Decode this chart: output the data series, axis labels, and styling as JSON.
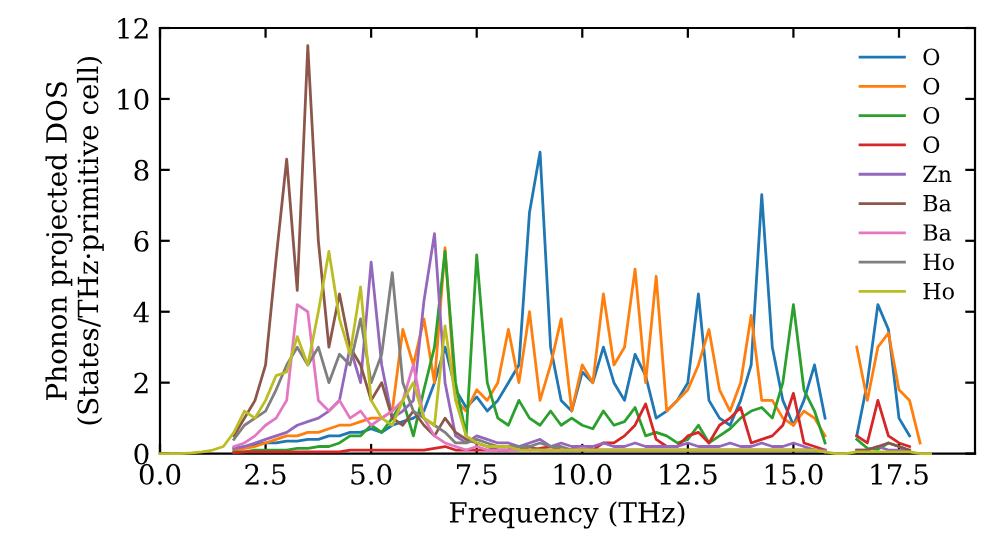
{
  "chart_data": {
    "type": "line",
    "xlabel": "Frequency (THz)",
    "ylabel": "Phonon projected DOS\n(States/THz·primitive cell)",
    "xlim": [
      0,
      19.3
    ],
    "ylim": [
      0,
      12
    ],
    "xticks": [
      {
        "value": 0,
        "label": "0.0"
      },
      {
        "value": 2.5,
        "label": "2.5"
      },
      {
        "value": 5,
        "label": "5.0"
      },
      {
        "value": 7.5,
        "label": "7.5"
      },
      {
        "value": 10,
        "label": "10.0"
      },
      {
        "value": 12.5,
        "label": "12.5"
      },
      {
        "value": 15,
        "label": "15.0"
      },
      {
        "value": 17.5,
        "label": "17.5"
      }
    ],
    "yticks": [
      0,
      2,
      4,
      6,
      8,
      10,
      12
    ],
    "legend": "top right",
    "grid": false,
    "marker": "none",
    "line_style": "solid",
    "x": [
      0,
      0.25,
      0.5,
      0.75,
      1,
      1.25,
      1.5,
      1.75,
      2,
      2.25,
      2.5,
      2.75,
      3,
      3.25,
      3.5,
      3.75,
      4,
      4.25,
      4.5,
      4.75,
      5,
      5.25,
      5.5,
      5.75,
      6,
      6.25,
      6.5,
      6.75,
      7,
      7.25,
      7.5,
      7.75,
      8,
      8.25,
      8.5,
      8.75,
      9,
      9.25,
      9.5,
      9.75,
      10,
      10.25,
      10.5,
      10.75,
      11,
      11.25,
      11.5,
      11.75,
      12,
      12.25,
      12.5,
      12.75,
      13,
      13.25,
      13.5,
      13.75,
      14,
      14.25,
      14.5,
      14.75,
      15,
      15.25,
      15.5,
      15.75,
      16,
      16.25,
      16.5,
      16.75,
      17,
      17.25,
      17.5,
      17.75,
      18,
      18.25
    ],
    "series": [
      {
        "name": "O",
        "color": "#1f77b4",
        "values": [
          null,
          null,
          null,
          null,
          null,
          null,
          null,
          0.15,
          0.2,
          0.25,
          0.3,
          0.3,
          0.35,
          0.35,
          0.4,
          0.4,
          0.5,
          0.5,
          0.6,
          0.6,
          0.7,
          0.6,
          0.8,
          0.9,
          1.0,
          1.2,
          2.0,
          3.0,
          1.8,
          1.3,
          1.6,
          1.2,
          1.5,
          2.0,
          2.5,
          6.8,
          8.5,
          3.0,
          1.5,
          1.2,
          2.3,
          2.0,
          3.0,
          2.0,
          1.5,
          2.8,
          2.2,
          1.0,
          1.2,
          1.5,
          2.0,
          4.5,
          1.5,
          1.0,
          0.8,
          1.5,
          2.5,
          7.3,
          3.0,
          1.5,
          0.8,
          1.5,
          2.5,
          1.0,
          null,
          null,
          0.5,
          2.0,
          4.2,
          3.5,
          1.0,
          0.5,
          null,
          null
        ]
      },
      {
        "name": "O",
        "color": "#ff7f0e",
        "values": [
          null,
          null,
          null,
          null,
          null,
          null,
          null,
          0.1,
          0.15,
          0.2,
          0.3,
          0.4,
          0.5,
          0.5,
          0.6,
          0.6,
          0.7,
          0.8,
          0.8,
          0.9,
          1.0,
          1.0,
          1.2,
          3.5,
          2.5,
          3.8,
          2.0,
          5.8,
          1.5,
          1.2,
          1.8,
          1.5,
          2.0,
          3.5,
          2.0,
          4.0,
          1.5,
          2.5,
          3.8,
          1.2,
          2.5,
          2.0,
          4.5,
          2.5,
          3.0,
          5.2,
          2.0,
          5.0,
          1.2,
          1.5,
          1.8,
          2.5,
          3.5,
          1.8,
          1.2,
          2.0,
          3.9,
          1.5,
          1.5,
          1.0,
          0.8,
          1.2,
          1.0,
          0.5,
          null,
          null,
          3.0,
          1.5,
          3.0,
          3.4,
          1.8,
          1.5,
          0.3,
          null
        ]
      },
      {
        "name": "O",
        "color": "#2ca02c",
        "values": [
          null,
          null,
          null,
          null,
          null,
          null,
          null,
          0.05,
          0.05,
          0.1,
          0.1,
          0.1,
          0.1,
          0.15,
          0.15,
          0.2,
          0.2,
          0.3,
          0.5,
          0.5,
          0.8,
          0.6,
          1.0,
          1.5,
          0.5,
          1.8,
          3.0,
          5.7,
          2.0,
          0.5,
          5.6,
          2.0,
          1.0,
          0.8,
          1.5,
          1.0,
          0.8,
          1.2,
          0.8,
          1.0,
          0.8,
          0.7,
          1.2,
          0.8,
          0.9,
          1.3,
          0.5,
          0.6,
          0.5,
          0.3,
          0.4,
          0.8,
          0.3,
          0.5,
          0.7,
          1.0,
          1.2,
          1.3,
          1.0,
          2.0,
          4.2,
          1.8,
          1.2,
          0.3,
          null,
          null,
          0.4,
          0.15,
          0.12,
          0.3,
          0.2,
          0.08,
          null,
          null
        ]
      },
      {
        "name": "O",
        "color": "#d62728",
        "values": [
          null,
          null,
          null,
          null,
          null,
          null,
          null,
          0.03,
          0.05,
          0.05,
          0.05,
          0.05,
          0.05,
          0.05,
          0.05,
          0.05,
          0.05,
          0.05,
          0.1,
          0.1,
          0.1,
          0.1,
          0.1,
          0.1,
          0.1,
          0.1,
          0.15,
          0.2,
          0.1,
          0.1,
          0.1,
          0.1,
          0.1,
          0.1,
          0.2,
          0.1,
          0.15,
          0.2,
          0.1,
          0.1,
          0.2,
          0.1,
          0.3,
          0.3,
          0.5,
          0.8,
          1.4,
          0.4,
          0.2,
          0.2,
          0.5,
          0.6,
          0.3,
          0.8,
          1.0,
          1.3,
          0.3,
          0.4,
          0.5,
          0.8,
          1.7,
          0.3,
          0.2,
          0.1,
          null,
          null,
          0.5,
          0.3,
          1.5,
          0.5,
          0.3,
          0.2,
          null,
          null
        ]
      },
      {
        "name": "Zn",
        "color": "#9467bd",
        "values": [
          null,
          null,
          null,
          null,
          null,
          null,
          null,
          0.15,
          0.2,
          0.3,
          0.4,
          0.5,
          0.6,
          0.8,
          0.9,
          1.0,
          1.2,
          1.5,
          3.0,
          2.0,
          5.4,
          2.5,
          1.0,
          1.2,
          1.5,
          4.3,
          6.2,
          2.0,
          0.5,
          0.3,
          0.5,
          0.4,
          0.3,
          0.3,
          0.2,
          0.3,
          0.4,
          0.2,
          0.3,
          0.2,
          0.2,
          0.2,
          0.3,
          0.2,
          0.2,
          0.3,
          0.2,
          0.2,
          0.2,
          0.2,
          0.3,
          0.2,
          0.2,
          0.2,
          0.3,
          0.2,
          0.2,
          0.3,
          0.2,
          0.2,
          0.3,
          0.2,
          0.1,
          0.1,
          null,
          null,
          0.1,
          0.1,
          0.2,
          0.1,
          0.1,
          0.1,
          null,
          null
        ]
      },
      {
        "name": "Ba",
        "color": "#8c564b",
        "values": [
          null,
          null,
          null,
          null,
          null,
          null,
          null,
          0.5,
          1.0,
          1.5,
          2.5,
          5.5,
          8.3,
          4.6,
          11.5,
          6.0,
          3.0,
          4.5,
          3.0,
          2.5,
          1.5,
          2.0,
          1.0,
          0.8,
          1.2,
          0.8,
          0.5,
          1.0,
          0.6,
          0.4,
          0.3,
          0.2,
          0.1,
          0.1,
          0.1,
          0.2,
          0.1,
          0.1,
          0.1,
          0.1,
          0.1,
          0.1,
          0.1,
          0.1,
          0.1,
          0.1,
          0.1,
          0.1,
          0.1,
          0.1,
          0.1,
          0.1,
          0.1,
          0.1,
          0.1,
          0.1,
          0.1,
          0.1,
          0.1,
          0.1,
          0.1,
          0.1,
          0.1,
          0.05,
          null,
          null,
          0.1,
          0.1,
          0.2,
          0.3,
          0.2,
          0.1,
          null,
          null
        ]
      },
      {
        "name": "Ba",
        "color": "#e377c2",
        "values": [
          null,
          null,
          null,
          null,
          null,
          null,
          null,
          0.2,
          0.3,
          0.5,
          0.8,
          1.0,
          1.5,
          4.2,
          4.0,
          1.5,
          1.2,
          1.5,
          1.0,
          1.2,
          0.8,
          1.0,
          1.2,
          1.5,
          2.5,
          1.0,
          0.5,
          0.3,
          0.2,
          0.1,
          0.2,
          0.1,
          0.1,
          0.1,
          0.1,
          0.1,
          0.1,
          0.1,
          0.1,
          0.1,
          0.15,
          0.1,
          0.1,
          0.1,
          0.1,
          0.1,
          0.1,
          0.1,
          0.1,
          0.1,
          0.1,
          0.1,
          0.1,
          0.1,
          0.1,
          0.1,
          0.1,
          0.1,
          0.1,
          0.1,
          0.1,
          0.1,
          0.1,
          0.05,
          null,
          null,
          null,
          null,
          null,
          null,
          null,
          null,
          null,
          null
        ]
      },
      {
        "name": "Ho",
        "color": "#7f7f7f",
        "values": [
          null,
          null,
          null,
          null,
          null,
          null,
          null,
          0.4,
          0.8,
          1.0,
          1.2,
          1.8,
          2.5,
          3.0,
          2.5,
          3.0,
          2.0,
          2.8,
          2.5,
          3.8,
          2.0,
          2.8,
          5.1,
          2.0,
          1.2,
          1.0,
          0.8,
          0.6,
          0.3,
          0.3,
          0.4,
          0.3,
          0.2,
          0.2,
          0.2,
          0.2,
          0.3,
          0.2,
          0.2,
          0.1,
          0.1,
          0.1,
          0.1,
          0.1,
          0.1,
          0.1,
          0.1,
          0.1,
          0.1,
          0.1,
          0.1,
          0.1,
          0.1,
          0.1,
          0.1,
          0.1,
          0.1,
          0.1,
          0.1,
          0.1,
          0.1,
          0.1,
          0.1,
          0.05,
          null,
          null,
          null,
          null,
          null,
          null,
          null,
          null,
          null,
          null
        ]
      },
      {
        "name": "Ho",
        "color": "#bcbd22",
        "values": [
          0,
          0,
          0,
          0.02,
          0.05,
          0.1,
          0.2,
          0.6,
          1.2,
          1.0,
          1.5,
          2.2,
          2.3,
          3.3,
          2.5,
          4.0,
          5.7,
          3.8,
          2.8,
          4.7,
          1.5,
          1.0,
          0.8,
          1.5,
          2.0,
          1.0,
          0.8,
          3.6,
          1.5,
          0.5,
          0.3,
          0.2,
          0.2,
          0.2,
          0.1,
          0.1,
          0.1,
          0.1,
          0.1,
          0.1,
          0.1,
          0.1,
          0.1,
          0.1,
          0.1,
          0.1,
          0.1,
          0.1,
          0.1,
          0.1,
          0.1,
          0.1,
          0.1,
          0.1,
          0.1,
          0.1,
          0.1,
          0.1,
          0.1,
          0.1,
          0.1,
          0.1,
          0.1,
          0.05,
          0,
          0,
          0.05,
          0.05,
          0.05,
          0.05,
          0.05,
          0.05,
          0,
          0
        ]
      }
    ]
  }
}
